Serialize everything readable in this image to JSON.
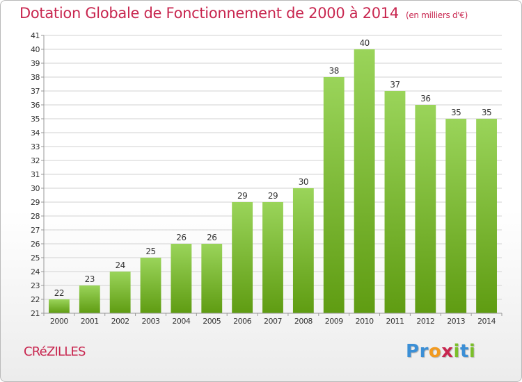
{
  "title": "Dotation Globale de Fonctionnement de 2000 à 2014",
  "unit": "(en milliers d'€)",
  "commune": "CRéZILLES",
  "logo": {
    "letters": [
      "P",
      "r",
      "o",
      "x",
      "i",
      "t",
      "i"
    ],
    "colors": [
      "#3b8fd6",
      "#3b8fd6",
      "#f29a1f",
      "#c8264f",
      "#7bbf2a",
      "#3b8fd6",
      "#7bbf2a"
    ]
  },
  "colors": {
    "bar_top": "#9ad45a",
    "bar_bottom": "#5f9c12",
    "accent": "#c8264f"
  },
  "chart_data": {
    "type": "bar",
    "categories": [
      "2000",
      "2001",
      "2002",
      "2003",
      "2004",
      "2005",
      "2006",
      "2007",
      "2008",
      "2009",
      "2010",
      "2011",
      "2012",
      "2013",
      "2014"
    ],
    "values": [
      22,
      23,
      24,
      25,
      26,
      26,
      29,
      29,
      30,
      38,
      40,
      37,
      36,
      35,
      35
    ],
    "ylim": [
      21,
      41
    ],
    "yticks": [
      21,
      22,
      23,
      24,
      25,
      26,
      27,
      28,
      29,
      30,
      31,
      32,
      33,
      34,
      35,
      36,
      37,
      38,
      39,
      40,
      41
    ],
    "grid": true,
    "legend": "none"
  }
}
